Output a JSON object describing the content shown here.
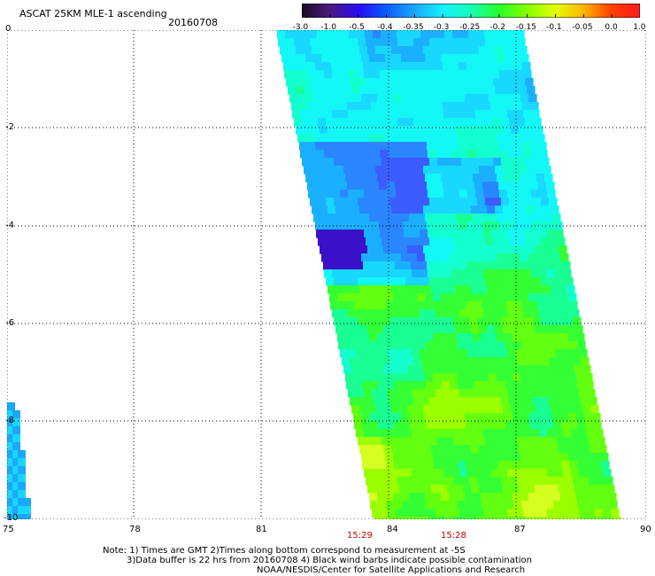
{
  "header": {
    "title": "ASCAT 25KM MLE-1 ascending",
    "date": "20160708"
  },
  "colorbar": {
    "labels": [
      "-3.0",
      "-1.0",
      "-0.5",
      "-0.4",
      "-0.35",
      "-0.3",
      "-0.25",
      "-0.2",
      "-0.15",
      "-0.1",
      "-0.05",
      "0.0",
      "1.0"
    ],
    "colors": [
      "#1a0b22",
      "#4a1a80",
      "#2a0cf0",
      "#0a5dff",
      "#1aa7ff",
      "#14f1ff",
      "#14ffb8",
      "#28ff28",
      "#86ff00",
      "#e3ff00",
      "#ffb400",
      "#ff4000",
      "#ff1a1a"
    ]
  },
  "map": {
    "lon_labels": [
      "75",
      "78",
      "81",
      "84",
      "87",
      "90"
    ],
    "lat_labels": [
      "0",
      "-2",
      "-4",
      "-6",
      "-8",
      "-10"
    ],
    "times": [
      "15:29",
      "15:28"
    ]
  },
  "notes": {
    "line1": "Note: 1) Times are GMT 2)Times along bottom correspond to measurement at -5S",
    "line2": "3)Data buffer is 22 hrs from 20160708 4) Black wind barbs indicate possible contamination",
    "line3": "NOAA/NESDIS/Center for Satellite Applications and Research"
  }
}
